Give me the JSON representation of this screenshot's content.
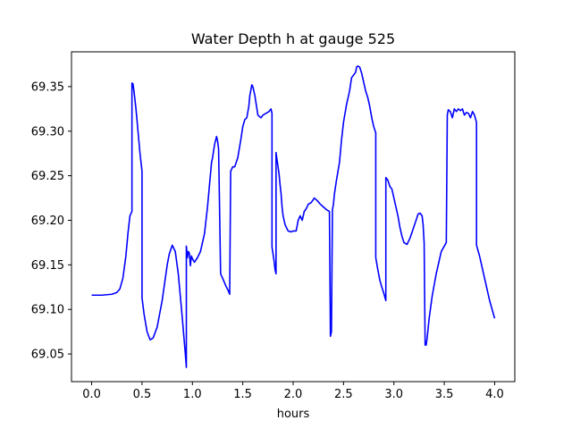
{
  "chart_data": {
    "type": "line",
    "title": "Water Depth h at gauge 525",
    "xlabel": "hours",
    "ylabel": "",
    "xlim": [
      -0.2,
      4.2
    ],
    "ylim": [
      69.019,
      69.389
    ],
    "xticks": [
      0.0,
      0.5,
      1.0,
      1.5,
      2.0,
      2.5,
      3.0,
      3.5,
      4.0
    ],
    "xtick_labels": [
      "0.0",
      "0.5",
      "1.0",
      "1.5",
      "2.0",
      "2.5",
      "3.0",
      "3.5",
      "4.0"
    ],
    "yticks": [
      69.05,
      69.1,
      69.15,
      69.2,
      69.25,
      69.3,
      69.35
    ],
    "ytick_labels": [
      "69.05",
      "69.10",
      "69.15",
      "69.20",
      "69.25",
      "69.30",
      "69.35"
    ],
    "grid": false,
    "series": [
      {
        "color": "#0000ff",
        "x": [
          0.0,
          0.1,
          0.2,
          0.25,
          0.28,
          0.31,
          0.34,
          0.36,
          0.38,
          0.4,
          0.4,
          0.41,
          0.42,
          0.44,
          0.46,
          0.48,
          0.5,
          0.5,
          0.52,
          0.55,
          0.58,
          0.61,
          0.65,
          0.7,
          0.75,
          0.77,
          0.8,
          0.83,
          0.86,
          0.9,
          0.93,
          0.94,
          0.94,
          0.95,
          0.96,
          0.97,
          0.98,
          0.99,
          1.0,
          1.02,
          1.05,
          1.08,
          1.12,
          1.15,
          1.17,
          1.19,
          1.2,
          1.22,
          1.24,
          1.25,
          1.26,
          1.28,
          1.3,
          1.33,
          1.36,
          1.37,
          1.38,
          1.4,
          1.42,
          1.45,
          1.48,
          1.5,
          1.52,
          1.54,
          1.56,
          1.57,
          1.59,
          1.6,
          1.62,
          1.65,
          1.68,
          1.7,
          1.73,
          1.76,
          1.78,
          1.79,
          1.79,
          1.81,
          1.82,
          1.83,
          1.83,
          1.84,
          1.85,
          1.86,
          1.87,
          1.88,
          1.89,
          1.9,
          1.92,
          1.95,
          1.98,
          2.0,
          2.03,
          2.05,
          2.07,
          2.09,
          2.11,
          2.13,
          2.15,
          2.18,
          2.21,
          2.24,
          2.27,
          2.3,
          2.33,
          2.36,
          2.37,
          2.38,
          2.39,
          2.4,
          2.41,
          2.43,
          2.46,
          2.48,
          2.5,
          2.53,
          2.56,
          2.58,
          2.6,
          2.62,
          2.63,
          2.64,
          2.66,
          2.68,
          2.7,
          2.72,
          2.74,
          2.76,
          2.78,
          2.8,
          2.82,
          2.82,
          2.84,
          2.86,
          2.88,
          2.9,
          2.92,
          2.92,
          2.94,
          2.96,
          2.98,
          3.0,
          3.02,
          3.04,
          3.06,
          3.08,
          3.1,
          3.13,
          3.16,
          3.19,
          3.22,
          3.24,
          3.26,
          3.28,
          3.29,
          3.3,
          3.31,
          3.32,
          3.33,
          3.35,
          3.38,
          3.42,
          3.47,
          3.52,
          3.53,
          3.54,
          3.56,
          3.58,
          3.6,
          3.62,
          3.64,
          3.66,
          3.68,
          3.7,
          3.72,
          3.74,
          3.76,
          3.78,
          3.8,
          3.82,
          3.82,
          3.85,
          3.9,
          3.95,
          4.0
        ],
        "y": [
          69.116,
          69.116,
          69.117,
          69.119,
          69.123,
          69.135,
          69.16,
          69.185,
          69.205,
          69.21,
          69.354,
          69.353,
          69.345,
          69.325,
          69.3,
          69.275,
          69.255,
          69.113,
          69.095,
          69.075,
          69.066,
          69.068,
          69.08,
          69.11,
          69.15,
          69.162,
          69.172,
          69.165,
          69.14,
          69.09,
          69.05,
          69.035,
          69.171,
          69.158,
          69.165,
          69.163,
          69.149,
          69.16,
          69.157,
          69.153,
          69.158,
          69.165,
          69.185,
          69.215,
          69.24,
          69.265,
          69.27,
          69.285,
          69.294,
          69.289,
          69.28,
          69.14,
          69.135,
          69.127,
          69.12,
          69.117,
          69.255,
          69.26,
          69.26,
          69.27,
          69.29,
          69.305,
          69.313,
          69.315,
          69.328,
          69.34,
          69.352,
          69.35,
          69.34,
          69.318,
          69.315,
          69.318,
          69.32,
          69.322,
          69.325,
          69.32,
          69.17,
          69.155,
          69.145,
          69.14,
          69.276,
          69.268,
          69.26,
          69.252,
          69.24,
          69.23,
          69.215,
          69.205,
          69.195,
          69.188,
          69.187,
          69.188,
          69.188,
          69.2,
          69.205,
          69.2,
          69.21,
          69.213,
          69.218,
          69.22,
          69.225,
          69.222,
          69.218,
          69.215,
          69.212,
          69.21,
          69.07,
          69.075,
          69.212,
          69.218,
          69.23,
          69.245,
          69.265,
          69.29,
          69.31,
          69.33,
          69.345,
          69.36,
          69.363,
          69.366,
          69.372,
          69.373,
          69.372,
          69.365,
          69.355,
          69.345,
          69.338,
          69.328,
          69.315,
          69.305,
          69.298,
          69.158,
          69.145,
          69.133,
          69.125,
          69.118,
          69.11,
          69.248,
          69.245,
          69.238,
          69.235,
          69.225,
          69.215,
          69.205,
          69.192,
          69.182,
          69.175,
          69.173,
          69.18,
          69.19,
          69.2,
          69.207,
          69.208,
          69.205,
          69.195,
          69.175,
          69.06,
          69.06,
          69.068,
          69.09,
          69.115,
          69.14,
          69.165,
          69.175,
          69.318,
          69.324,
          69.322,
          69.315,
          69.325,
          69.322,
          69.325,
          69.323,
          69.325,
          69.318,
          69.321,
          69.32,
          69.315,
          69.322,
          69.318,
          69.31,
          69.172,
          69.16,
          69.135,
          69.11,
          69.09
        ]
      }
    ]
  }
}
